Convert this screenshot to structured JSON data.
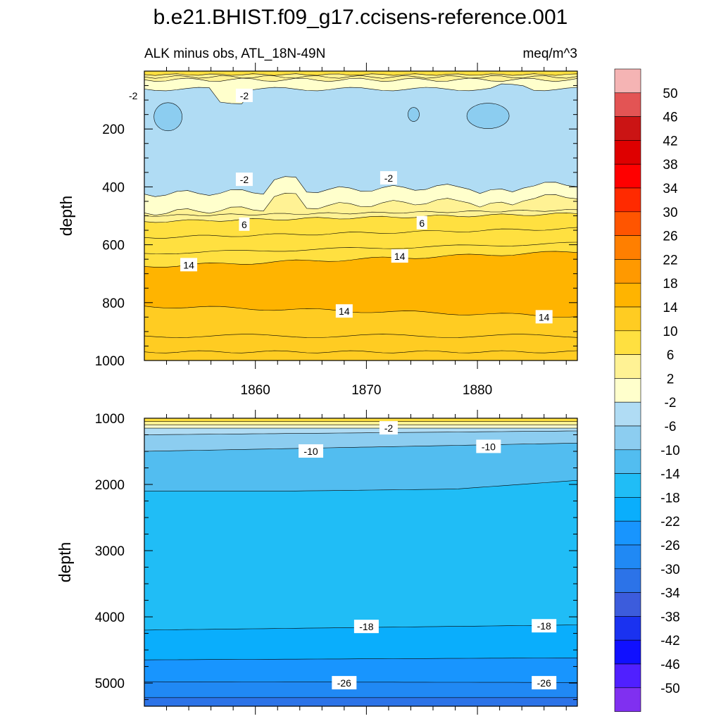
{
  "title": "b.e21.BHIST.f09_g17.ccisens-reference.001",
  "subtitle_left": "ALK minus obs, ATL_18N-49N",
  "subtitle_right": "meq/m^3",
  "chart_data": [
    {
      "type": "heatmap",
      "panel": "upper",
      "xlabel": "",
      "ylabel": "depth",
      "xlim": [
        1850,
        1889
      ],
      "ylim": [
        1000,
        0
      ],
      "xticks": [
        1860,
        1870,
        1880
      ],
      "xtick_labels": [
        "1860",
        "1870",
        "1880"
      ],
      "yticks": [
        200,
        400,
        600,
        800,
        1000
      ],
      "ytick_labels": [
        "200",
        "400",
        "600",
        "800",
        "1000"
      ],
      "layers": [
        {
          "level": "-6",
          "top": [
            140,
            140,
            140,
            140,
            140,
            140,
            140,
            140,
            140,
            140
          ],
          "bottom": [
            185,
            185,
            185,
            185,
            185,
            185,
            185,
            185,
            185,
            185
          ],
          "pockets": true
        },
        {
          "level": "-2",
          "top_depth": 65,
          "bottom_depth": 420
        },
        {
          "level": "2",
          "top_depth": 35,
          "bottom_depth": 470
        },
        {
          "level": "6",
          "top_depth": 20,
          "bottom_depth": 540
        },
        {
          "level": "10",
          "top_depth": 10,
          "bottom_depth": 620
        },
        {
          "level": "14",
          "top_depth": 650,
          "bottom_depth": 820
        },
        {
          "level": "10",
          "top_depth": 820,
          "bottom_depth": 1000
        }
      ],
      "contour_labels": [
        {
          "text": "-2",
          "x": 1849,
          "depth": 85
        },
        {
          "text": "-2",
          "x": 1859,
          "depth": 85
        },
        {
          "text": "-2",
          "x": 1859,
          "depth": 375
        },
        {
          "text": "-2",
          "x": 1872,
          "depth": 370
        },
        {
          "text": "6",
          "x": 1859,
          "depth": 530
        },
        {
          "text": "6",
          "x": 1875,
          "depth": 525
        },
        {
          "text": "14",
          "x": 1854,
          "depth": 670
        },
        {
          "text": "14",
          "x": 1873,
          "depth": 640
        },
        {
          "text": "14",
          "x": 1868,
          "depth": 830
        },
        {
          "text": "14",
          "x": 1886,
          "depth": 850
        }
      ]
    },
    {
      "type": "heatmap",
      "panel": "lower",
      "xlabel": "",
      "ylabel": "depth",
      "xlim": [
        1850,
        1889
      ],
      "ylim": [
        5350,
        1000
      ],
      "xticks": [
        1860,
        1870,
        1880
      ],
      "yticks": [
        1000,
        2000,
        3000,
        4000,
        5000
      ],
      "ytick_labels": [
        "1000",
        "2000",
        "3000",
        "4000",
        "5000"
      ],
      "contour_labels": [
        {
          "text": "-2",
          "x": 1872,
          "depth": 1150
        },
        {
          "text": "-10",
          "x": 1865,
          "depth": 1500
        },
        {
          "text": "-10",
          "x": 1881,
          "depth": 1430
        },
        {
          "text": "-18",
          "x": 1870,
          "depth": 4150
        },
        {
          "text": "-18",
          "x": 1886,
          "depth": 4140
        },
        {
          "text": "-26",
          "x": 1868,
          "depth": 5000
        },
        {
          "text": "-26",
          "x": 1886,
          "depth": 5000
        }
      ]
    }
  ],
  "colorbar": {
    "labels": [
      "50",
      "46",
      "42",
      "38",
      "34",
      "30",
      "26",
      "22",
      "18",
      "14",
      "10",
      "6",
      "2",
      "-2",
      "-6",
      "-10",
      "-14",
      "-18",
      "-22",
      "-26",
      "-30",
      "-34",
      "-38",
      "-42",
      "-46",
      "-50"
    ],
    "colors": [
      "#f5b4b4",
      "#e35454",
      "#cb1414",
      "#de0000",
      "#ff0000",
      "#ff2a00",
      "#ff5500",
      "#ff7f00",
      "#ff9900",
      "#ffb400",
      "#ffcc22",
      "#ffe040",
      "#fff294",
      "#ffffcc",
      "#b0dcf4",
      "#8ccdf0",
      "#52bdf0",
      "#20bdf6",
      "#0aaefc",
      "#1895fe",
      "#2089f4",
      "#2c73e8",
      "#3c5cdc",
      "#1a32f0",
      "#1010ff",
      "#5020ff",
      "#8030f0"
    ]
  }
}
